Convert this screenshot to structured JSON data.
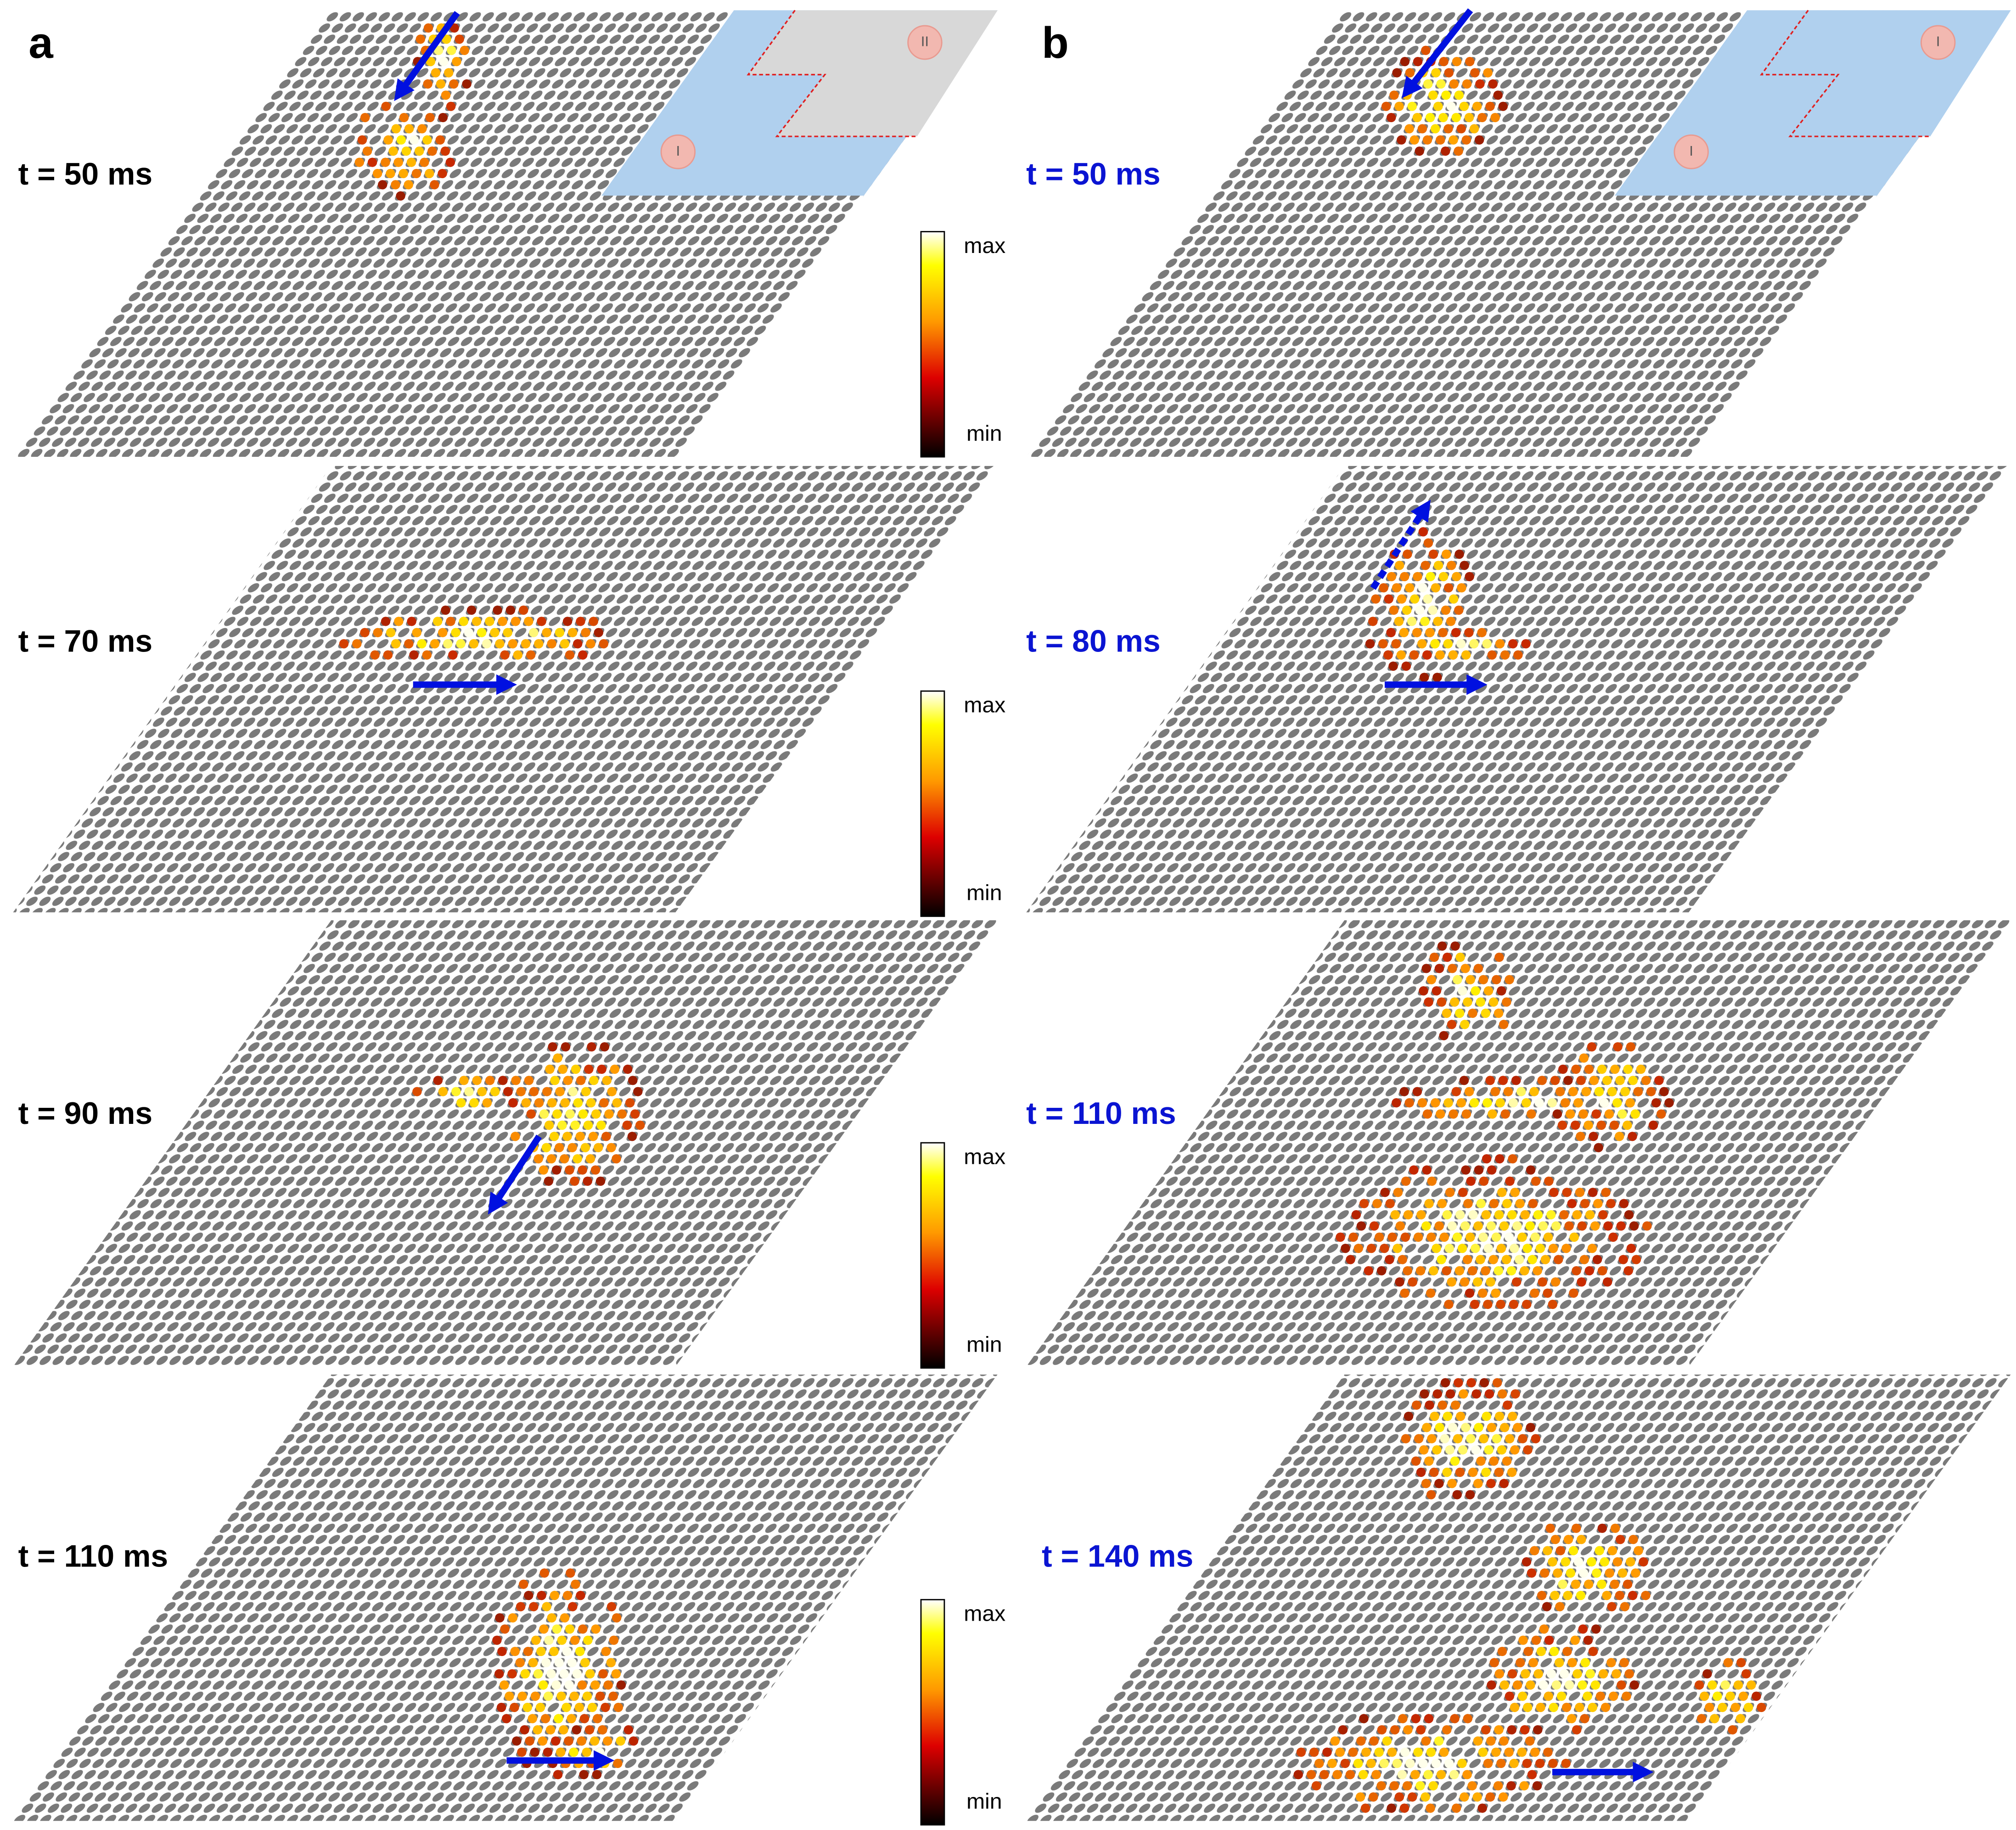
{
  "panels": [
    {
      "label": "a",
      "frames": [
        {
          "time": "t = 50 ms"
        },
        {
          "time": "t = 70 ms"
        },
        {
          "time": "t = 90 ms"
        },
        {
          "time": "t = 110 ms"
        }
      ],
      "inset": {
        "left": "I",
        "right": "II"
      }
    },
    {
      "label": "b",
      "frames": [
        {
          "time": "t = 50 ms"
        },
        {
          "time": "t = 80 ms"
        },
        {
          "time": "t = 110 ms"
        },
        {
          "time": "t = 140 ms"
        }
      ],
      "inset": {
        "left": "I",
        "right": "I"
      }
    }
  ],
  "colorbar": {
    "max": "max",
    "min": "min"
  }
}
